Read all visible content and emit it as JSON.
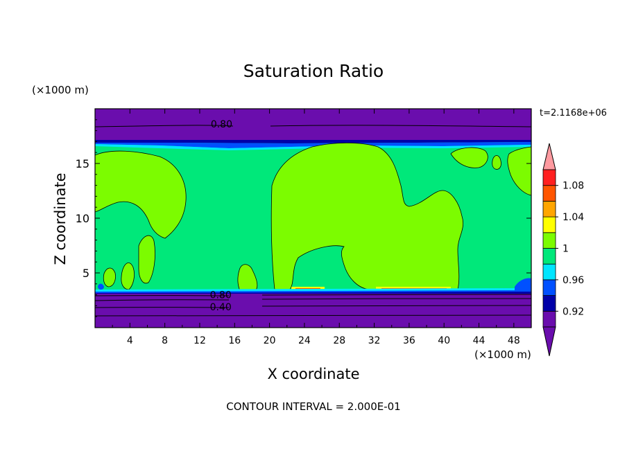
{
  "chart_data": {
    "type": "heatmap",
    "title": "Saturation Ratio",
    "xlabel": "X coordinate",
    "ylabel": "Z coordinate",
    "x_unit_label": "(×1000 m)",
    "y_unit_label": "(×1000 m)",
    "time_label": "t=2.1168e+06",
    "footer": "CONTOUR INTERVAL = 2.000E-01",
    "xlim": [
      0,
      50
    ],
    "ylim": [
      0,
      20
    ],
    "x_ticks": [
      4,
      8,
      12,
      16,
      20,
      24,
      28,
      32,
      36,
      40,
      44,
      48
    ],
    "y_ticks": [
      5,
      10,
      15
    ],
    "colorbar": {
      "levels": [
        0.9,
        0.92,
        0.94,
        0.96,
        0.98,
        1.0,
        1.02,
        1.04,
        1.06,
        1.08,
        1.1
      ],
      "tick_labels": [
        "0.92",
        "0.96",
        "1",
        "1.04",
        "1.08"
      ],
      "tick_values": [
        0.92,
        0.96,
        1.0,
        1.04,
        1.08
      ],
      "colors": [
        "#6a0dad",
        "#0000a8",
        "#0050ff",
        "#00e5ff",
        "#00e87a",
        "#7cfc00",
        "#ffff00",
        "#ffa500",
        "#ff5500",
        "#ff2020",
        "#ff9aa0"
      ],
      "under_color": "#6a0dad",
      "over_color": "#ff9aa0"
    },
    "contour_labels": [
      {
        "text": "0.80",
        "x": 14.5,
        "y": 18.6
      },
      {
        "text": "0.80",
        "x": 14.4,
        "y": 3.0
      },
      {
        "text": "0.40",
        "x": 14.4,
        "y": 1.9
      }
    ]
  }
}
